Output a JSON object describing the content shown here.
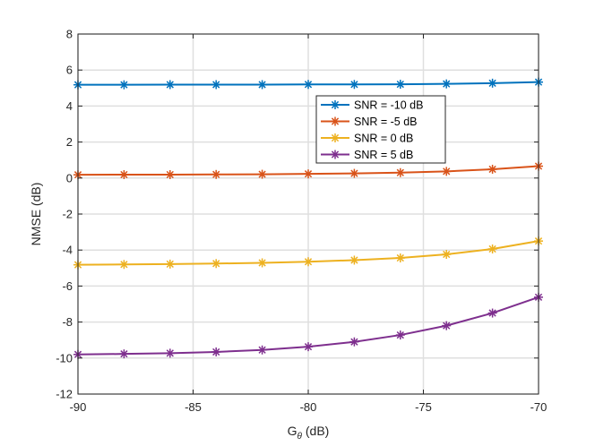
{
  "chart_data": {
    "type": "line",
    "title": "",
    "xlabel": "G",
    "xlabel_subscript": "θ",
    "xlabel_suffix": " (dB)",
    "ylabel": "NMSE (dB)",
    "xlim": [
      -90,
      -70
    ],
    "ylim": [
      -12,
      8
    ],
    "xticks": [
      -90,
      -85,
      -80,
      -75,
      -70
    ],
    "yticks": [
      -12,
      -10,
      -8,
      -6,
      -4,
      -2,
      0,
      2,
      4,
      6,
      8
    ],
    "grid": true,
    "legend_position": "center-right",
    "x": [
      -90,
      -88,
      -86,
      -84,
      -82,
      -80,
      -78,
      -76,
      -74,
      -72,
      -70
    ],
    "series": [
      {
        "name": "SNR = -10 dB",
        "color": "#0072BD",
        "marker": "asterisk",
        "values": [
          5.18,
          5.18,
          5.19,
          5.19,
          5.19,
          5.2,
          5.2,
          5.21,
          5.23,
          5.27,
          5.33
        ]
      },
      {
        "name": "SNR = -5 dB",
        "color": "#D95319",
        "marker": "asterisk",
        "values": [
          0.18,
          0.19,
          0.19,
          0.2,
          0.21,
          0.23,
          0.26,
          0.3,
          0.37,
          0.49,
          0.66
        ]
      },
      {
        "name": "SNR = 0 dB",
        "color": "#EDB120",
        "marker": "asterisk",
        "values": [
          -4.82,
          -4.8,
          -4.78,
          -4.75,
          -4.71,
          -4.65,
          -4.56,
          -4.44,
          -4.24,
          -3.94,
          -3.5
        ]
      },
      {
        "name": "SNR = 5 dB",
        "color": "#7E2F8E",
        "marker": "asterisk",
        "values": [
          -9.8,
          -9.77,
          -9.73,
          -9.66,
          -9.55,
          -9.37,
          -9.1,
          -8.72,
          -8.2,
          -7.5,
          -6.62
        ]
      }
    ]
  }
}
